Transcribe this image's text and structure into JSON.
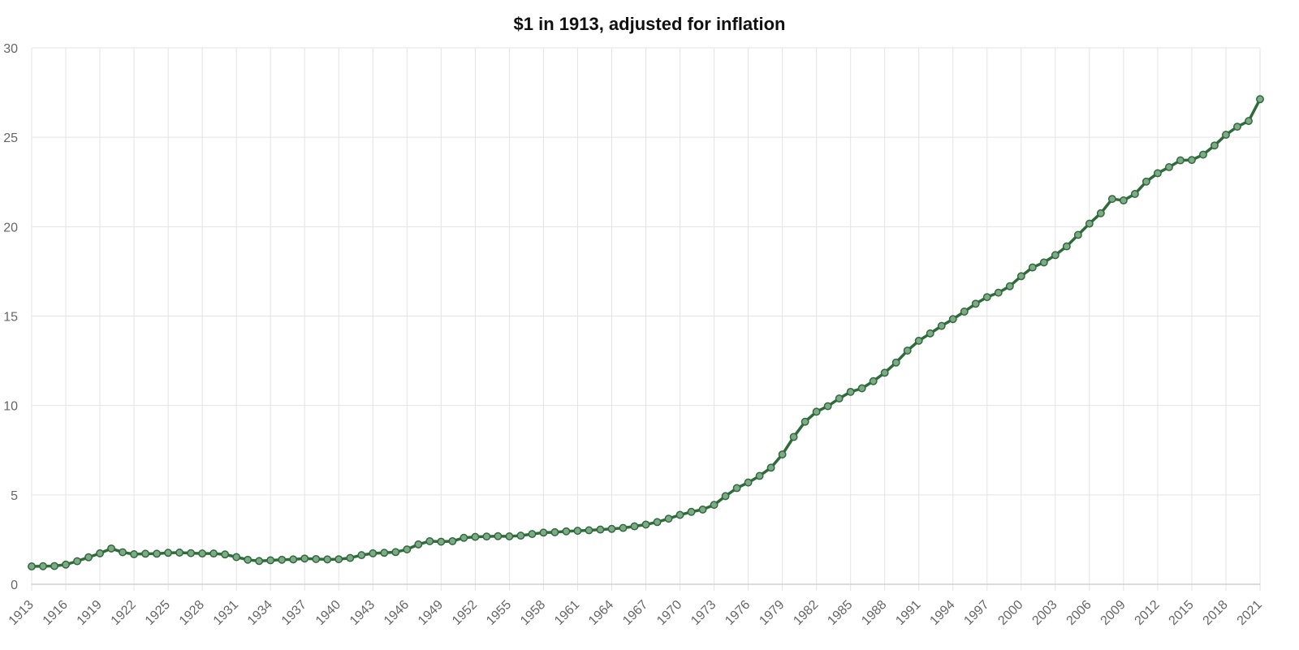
{
  "chart_data": {
    "type": "line",
    "title": "$1 in 1913, adjusted for inflation",
    "xlabel": "",
    "ylabel": "",
    "ylim": [
      0,
      30
    ],
    "yticks": [
      0,
      5,
      10,
      15,
      20,
      25,
      30
    ],
    "xlim": [
      1913,
      2021
    ],
    "xticks": [
      1913,
      1916,
      1919,
      1922,
      1925,
      1928,
      1931,
      1934,
      1937,
      1940,
      1943,
      1946,
      1949,
      1952,
      1955,
      1958,
      1961,
      1964,
      1967,
      1970,
      1973,
      1976,
      1979,
      1982,
      1985,
      1988,
      1991,
      1994,
      1997,
      2000,
      2003,
      2006,
      2009,
      2012,
      2015,
      2018,
      2021
    ],
    "grid": true,
    "legend": "none",
    "x": [
      1913,
      1914,
      1915,
      1916,
      1917,
      1918,
      1919,
      1920,
      1921,
      1922,
      1923,
      1924,
      1925,
      1926,
      1927,
      1928,
      1929,
      1930,
      1931,
      1932,
      1933,
      1934,
      1935,
      1936,
      1937,
      1938,
      1939,
      1940,
      1941,
      1942,
      1943,
      1944,
      1945,
      1946,
      1947,
      1948,
      1949,
      1950,
      1951,
      1952,
      1953,
      1954,
      1955,
      1956,
      1957,
      1958,
      1959,
      1960,
      1961,
      1962,
      1963,
      1964,
      1965,
      1966,
      1967,
      1968,
      1969,
      1970,
      1971,
      1972,
      1973,
      1974,
      1975,
      1976,
      1977,
      1978,
      1979,
      1980,
      1981,
      1982,
      1983,
      1984,
      1985,
      1986,
      1987,
      1988,
      1989,
      1990,
      1991,
      1992,
      1993,
      1994,
      1995,
      1996,
      1997,
      1998,
      1999,
      2000,
      2001,
      2002,
      2003,
      2004,
      2005,
      2006,
      2007,
      2008,
      2009,
      2010,
      2011,
      2012,
      2013,
      2014,
      2015,
      2016,
      2017,
      2018,
      2019,
      2020,
      2021
    ],
    "series": [
      {
        "name": "",
        "color": "#2e6b3a",
        "marker_fill": "#7fa987",
        "values": [
          1.0,
          1.01,
          1.02,
          1.1,
          1.29,
          1.51,
          1.73,
          2.0,
          1.79,
          1.68,
          1.71,
          1.71,
          1.76,
          1.77,
          1.74,
          1.72,
          1.72,
          1.67,
          1.52,
          1.37,
          1.3,
          1.34,
          1.37,
          1.39,
          1.44,
          1.41,
          1.39,
          1.4,
          1.47,
          1.63,
          1.73,
          1.76,
          1.8,
          1.95,
          2.23,
          2.41,
          2.38,
          2.41,
          2.6,
          2.65,
          2.67,
          2.69,
          2.68,
          2.72,
          2.81,
          2.89,
          2.91,
          2.96,
          2.99,
          3.02,
          3.06,
          3.1,
          3.15,
          3.24,
          3.34,
          3.48,
          3.67,
          3.88,
          4.05,
          4.18,
          4.44,
          4.93,
          5.38,
          5.69,
          6.06,
          6.52,
          7.26,
          8.24,
          9.09,
          9.65,
          9.96,
          10.39,
          10.76,
          10.96,
          11.36,
          11.83,
          12.4,
          13.07,
          13.62,
          14.03,
          14.45,
          14.83,
          15.25,
          15.69,
          16.06,
          16.31,
          16.67,
          17.23,
          17.72,
          18.0,
          18.41,
          18.9,
          19.54,
          20.17,
          20.75,
          21.55,
          21.47,
          21.83,
          22.52,
          22.99,
          23.33,
          23.71,
          23.73,
          24.03,
          24.54,
          25.14,
          25.59,
          25.91,
          27.13
        ]
      }
    ]
  }
}
